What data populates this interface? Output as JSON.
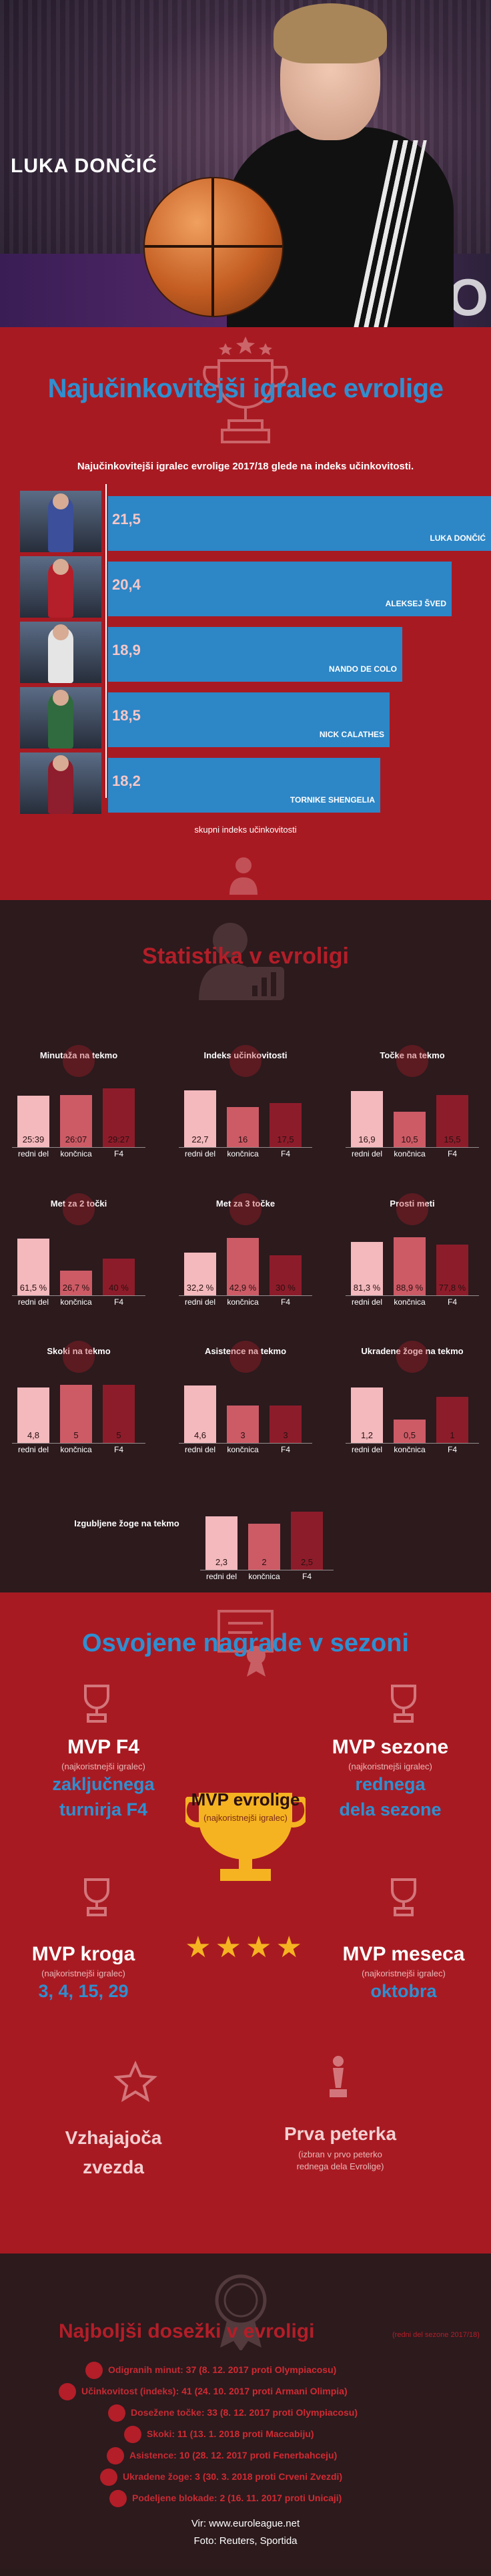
{
  "hero": {
    "title": "LUKA DONČIĆ",
    "background_word": "EURO"
  },
  "section_index": {
    "title": "Najučinkovitejši igralec evrolige",
    "subtitle": "Najučinkovitejši igralec evrolige 2017/18 glede na indeks učinkovitosti.",
    "xlabel": "skupni indeks učinkovitosti",
    "players": [
      {
        "value": "21,5",
        "num": 21.5,
        "name": "LUKA DONČIĆ",
        "jersey": "#3b4f9a"
      },
      {
        "value": "20,4",
        "num": 20.4,
        "name": "ALEKSEJ ŠVED",
        "jersey": "#b51f2a"
      },
      {
        "value": "18,9",
        "num": 18.9,
        "name": "NANDO DE COLO",
        "jersey": "#e5e5e5"
      },
      {
        "value": "18,5",
        "num": 18.5,
        "name": "NICK CALATHES",
        "jersey": "#2f6b3e"
      },
      {
        "value": "18,2",
        "num": 18.2,
        "name": "TORNIKE SHENGELIA",
        "jersey": "#8e1d2d"
      }
    ]
  },
  "section_stats": {
    "title": "Statistika v evroligi",
    "categories": [
      "redni del",
      "končnica",
      "F4"
    ],
    "colors": [
      "#f3b9bd",
      "#cc5b66",
      "#8d1c2a"
    ],
    "charts": [
      {
        "title": "Minutaža na tekmo",
        "labels": [
          "25:39",
          "26:07",
          "29:27"
        ],
        "values": [
          25.65,
          26.12,
          29.45
        ],
        "max": 30
      },
      {
        "title": "Indeks učinkovitosti",
        "labels": [
          "22,7",
          "16",
          "17,5"
        ],
        "values": [
          22.7,
          16,
          17.5
        ],
        "max": 24
      },
      {
        "title": "Točke na tekmo",
        "labels": [
          "16,9",
          "10,5",
          "15,5"
        ],
        "values": [
          16.9,
          10.5,
          15.5
        ],
        "max": 18
      },
      {
        "title": "Met za 2 točki",
        "labels": [
          "61,5 %",
          "26,7 %",
          "40 %"
        ],
        "values": [
          61.5,
          26.7,
          40
        ],
        "max": 65
      },
      {
        "title": "Met za 3 točke",
        "labels": [
          "32,2 %",
          "42,9 %",
          "30 %"
        ],
        "values": [
          32.2,
          42.9,
          30
        ],
        "max": 45
      },
      {
        "title": "Prosti meti",
        "labels": [
          "81,3 %",
          "88,9 %",
          "77,8 %"
        ],
        "values": [
          81.3,
          88.9,
          77.8
        ],
        "max": 92
      },
      {
        "title": "Skoki na tekmo",
        "labels": [
          "4,8",
          "5",
          "5"
        ],
        "values": [
          4.8,
          5,
          5
        ],
        "max": 5.2
      },
      {
        "title": "Asistence na tekmo",
        "labels": [
          "4,6",
          "3",
          "3"
        ],
        "values": [
          4.6,
          3,
          3
        ],
        "max": 4.8
      },
      {
        "title": "Ukradene žoge na tekmo",
        "labels": [
          "1,2",
          "0,5",
          "1"
        ],
        "values": [
          1.2,
          0.5,
          1
        ],
        "max": 1.3
      },
      {
        "title": "Izgubljene žoge na tekmo",
        "labels": [
          "2,3",
          "2",
          "2,5"
        ],
        "values": [
          2.3,
          2,
          2.5
        ],
        "max": 2.6
      }
    ]
  },
  "section_awards": {
    "title": "Osvojene nagrade v sezoni",
    "awards": [
      {
        "title": "MVP F4",
        "sub": "(najkoristnejši igralec)",
        "detail": "zaključnega turnirja F4"
      },
      {
        "title": "MVP sezone",
        "sub": "(najkoristnejši igralec)",
        "detail": "rednega dela sezone"
      },
      {
        "title": "MVP evrolige",
        "sub": "(najkoristnejši igralec)"
      },
      {
        "title": "MVP kroga",
        "sub": "(najkoristnejši igralec)",
        "detail": "3, 4, 15, 29"
      },
      {
        "title": "MVP meseca",
        "sub": "(najkoristnejši igralec)",
        "detail": "oktobra"
      },
      {
        "title": "Vzhajajoča zvezda"
      },
      {
        "title": "Prva peterka",
        "sub": "(izbran v prvo peterko rednega dela Evrolige)"
      }
    ],
    "stars": "★★★★"
  },
  "section_records": {
    "title": "Najboljši dosežki v evroligi",
    "note": "(redni del sezone 2017/18)",
    "records": [
      {
        "label": "Odigranih minut:",
        "value": "37 (8. 12. 2017 proti Olympiacosu)"
      },
      {
        "label": "Učinkovitost (indeks):",
        "value": "41 (24. 10. 2017 proti Armani Olimpia)"
      },
      {
        "label": "Doseženе točke:",
        "value": "33 (8. 12. 2017 proti Olympiacosu)"
      },
      {
        "label": "Skoki:",
        "value": "11 (13. 1. 2018 proti Maccabiju)"
      },
      {
        "label": "Asistence:",
        "value": "10 (28. 12. 2017 proti Fenerbahceju)"
      },
      {
        "label": "Ukradene žoge:",
        "value": "3 (30. 3. 2018 proti Crveni Zvezdi)"
      },
      {
        "label": "Podeljene blokade:",
        "value": "2 (16. 11. 2017 proti Unicaji)"
      }
    ]
  },
  "footer": {
    "source": "Vir: www.euroleague.net",
    "photo": "Foto: Reuters, Sportida"
  }
}
